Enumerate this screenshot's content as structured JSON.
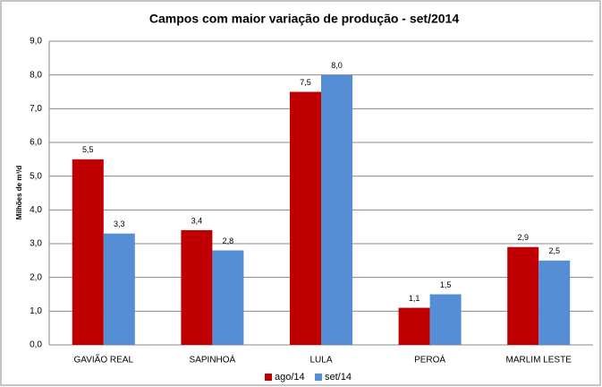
{
  "chart_data": {
    "type": "bar",
    "title": "Campos com maior variação de produção - set/2014",
    "y_label": "Milhões de m³/d",
    "categories": [
      "GAVIÃO REAL",
      "SAPINHOÁ",
      "LULA",
      "PEROÁ",
      "MARLIM LESTE"
    ],
    "series": [
      {
        "name": "ago/14",
        "color": "#c00000",
        "values": [
          5.5,
          3.4,
          7.5,
          1.1,
          2.9
        ],
        "value_labels": [
          "5,5",
          "3,4",
          "7,5",
          "1,1",
          "2,9"
        ]
      },
      {
        "name": "set/14",
        "color": "#558ed5",
        "values": [
          3.3,
          2.8,
          8.0,
          1.5,
          2.5
        ],
        "value_labels": [
          "3,3",
          "2,8",
          "8,0",
          "1,5",
          "2,5"
        ]
      }
    ],
    "ylim": [
      0,
      9
    ],
    "yticks": [
      {
        "value": 0,
        "label": "0,0"
      },
      {
        "value": 1,
        "label": "1,0"
      },
      {
        "value": 2,
        "label": "2,0"
      },
      {
        "value": 3,
        "label": "3,0"
      },
      {
        "value": 4,
        "label": "4,0"
      },
      {
        "value": 5,
        "label": "5,0"
      },
      {
        "value": 6,
        "label": "6,0"
      },
      {
        "value": 7,
        "label": "7,0"
      },
      {
        "value": 8,
        "label": "8,0"
      },
      {
        "value": 9,
        "label": "9,0"
      }
    ],
    "grid": true,
    "legend": "bottom"
  }
}
